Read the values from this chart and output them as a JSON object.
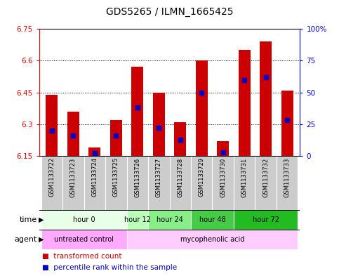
{
  "title": "GDS5265 / ILMN_1665425",
  "samples": [
    "GSM1133722",
    "GSM1133723",
    "GSM1133724",
    "GSM1133725",
    "GSM1133726",
    "GSM1133727",
    "GSM1133728",
    "GSM1133729",
    "GSM1133730",
    "GSM1133731",
    "GSM1133732",
    "GSM1133733"
  ],
  "transformed_counts": [
    6.44,
    6.36,
    6.19,
    6.32,
    6.57,
    6.45,
    6.31,
    6.6,
    6.22,
    6.65,
    6.69,
    6.46
  ],
  "percentile_ranks": [
    20,
    16,
    2,
    16,
    38,
    22,
    13,
    50,
    3,
    60,
    62,
    28
  ],
  "ymin": 6.15,
  "ymax": 6.75,
  "yticks": [
    6.15,
    6.3,
    6.45,
    6.6,
    6.75
  ],
  "ytick_labels": [
    "6.15",
    "6.3",
    "6.45",
    "6.6",
    "6.75"
  ],
  "right_yticks": [
    0,
    25,
    50,
    75,
    100
  ],
  "right_ytick_labels": [
    "0",
    "25",
    "50",
    "75",
    "100%"
  ],
  "bar_color": "#cc0000",
  "percentile_color": "#0000cc",
  "time_groups": [
    {
      "label": "hour 0",
      "start": 0,
      "end": 4,
      "color": "#e8ffe8"
    },
    {
      "label": "hour 12",
      "start": 4,
      "end": 5,
      "color": "#bbffbb"
    },
    {
      "label": "hour 24",
      "start": 5,
      "end": 7,
      "color": "#88ee88"
    },
    {
      "label": "hour 48",
      "start": 7,
      "end": 9,
      "color": "#44cc44"
    },
    {
      "label": "hour 72",
      "start": 9,
      "end": 12,
      "color": "#22bb22"
    }
  ],
  "agent_groups": [
    {
      "label": "untreated control",
      "start": 0,
      "end": 4,
      "color": "#ffaaff"
    },
    {
      "label": "mycophenolic acid",
      "start": 4,
      "end": 12,
      "color": "#ffccff"
    }
  ],
  "sample_bg_color": "#cccccc",
  "bar_bottom": 6.15,
  "grid_lines": [
    6.3,
    6.45,
    6.6
  ]
}
